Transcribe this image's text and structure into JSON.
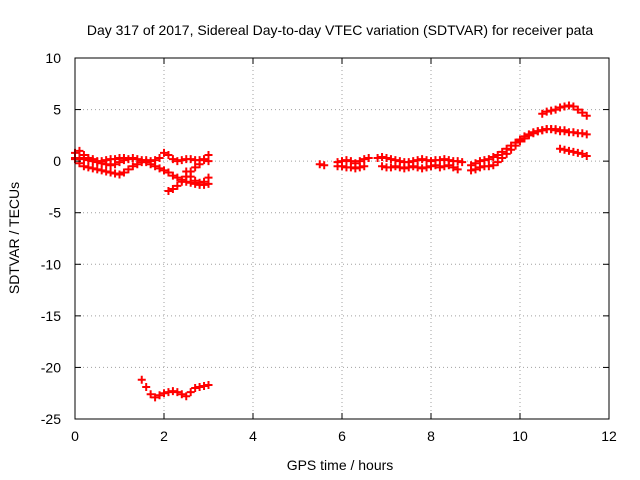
{
  "chart_data": {
    "type": "scatter",
    "title": "Day 317 of 2017, Sidereal Day-to-day VTEC variation (SDTVAR) for receiver pata",
    "xlabel": "GPS time / hours",
    "ylabel": "SDTVAR / TECUs",
    "xlim": [
      0,
      12
    ],
    "ylim": [
      -25,
      10
    ],
    "x_ticks": [
      0,
      2,
      4,
      6,
      8,
      10,
      12
    ],
    "y_ticks": [
      -25,
      -20,
      -15,
      -10,
      -5,
      0,
      5,
      10
    ],
    "x_tick_labels": [
      "0",
      "2",
      "4",
      "6",
      "8",
      "10",
      "12"
    ],
    "y_tick_labels": [
      "-25",
      "-20",
      "-15",
      "-10",
      "-5",
      "0",
      "5",
      "10"
    ],
    "grid": true,
    "marker": "plus",
    "color": "#ff0000",
    "series": [
      {
        "x": [
          0.0,
          0.1,
          0.2,
          0.3,
          0.4,
          0.5,
          0.6,
          0.7,
          0.8,
          0.9,
          1.0,
          1.1,
          1.2,
          1.3,
          1.4,
          1.5,
          1.6,
          1.7,
          1.8,
          1.9,
          2.0,
          2.1,
          2.2,
          2.3,
          2.4,
          2.5,
          2.6,
          2.7,
          2.8,
          2.9,
          3.0
        ],
        "y": [
          0.8,
          1.0,
          0.6,
          0.3,
          0.2,
          0.0,
          -0.2,
          -0.3,
          -0.4,
          -0.3,
          -0.1,
          0.1,
          0.2,
          0.3,
          0.2,
          0.1,
          0.1,
          0.0,
          0.1,
          0.3,
          0.8,
          0.6,
          0.2,
          0.0,
          0.1,
          0.2,
          0.2,
          0.1,
          0.1,
          0.1,
          0.0
        ]
      },
      {
        "x": [
          0.0,
          0.1,
          0.2,
          0.3,
          0.4,
          0.5,
          0.6,
          0.7,
          0.8,
          0.9,
          1.0,
          1.1,
          1.2,
          1.3,
          1.4,
          1.5
        ],
        "y": [
          0.3,
          -0.2,
          -0.5,
          -0.6,
          -0.7,
          -0.8,
          -0.9,
          -1.0,
          -1.1,
          -1.2,
          -1.3,
          -1.1,
          -0.8,
          -0.5,
          -0.3,
          -0.1
        ]
      },
      {
        "x": [
          0.0,
          0.1,
          0.2,
          0.3,
          0.4,
          0.5,
          0.6,
          0.7,
          0.8,
          0.9,
          1.0,
          1.1
        ],
        "y": [
          0.2,
          0.3,
          0.2,
          0.1,
          0.0,
          -0.1,
          0.0,
          0.1,
          0.2,
          0.2,
          0.3,
          0.3
        ]
      },
      {
        "x": [
          1.6,
          1.7,
          1.8,
          1.9,
          2.0,
          2.1,
          2.2,
          2.3,
          2.4,
          2.5,
          2.6,
          2.7,
          2.8,
          2.9,
          3.0
        ],
        "y": [
          -0.1,
          -0.3,
          -0.5,
          -0.7,
          -0.9,
          -1.1,
          -1.4,
          -1.6,
          -1.8,
          -2.0,
          -2.1,
          -2.2,
          -2.3,
          -2.3,
          -2.2
        ]
      },
      {
        "x": [
          2.1,
          2.2,
          2.3,
          2.4,
          2.5,
          2.6,
          2.7,
          2.8,
          2.9,
          3.0
        ],
        "y": [
          -2.9,
          -2.7,
          -2.4,
          -2.0,
          -1.5,
          -1.0,
          -0.6,
          -0.3,
          0.2,
          0.6
        ]
      },
      {
        "x": [
          2.5,
          2.6,
          2.7,
          2.8,
          2.9,
          3.0
        ],
        "y": [
          -1.0,
          -1.5,
          -1.9,
          -2.1,
          -2.0,
          -1.6
        ]
      },
      {
        "x": [
          1.5,
          1.6,
          1.7,
          1.8,
          1.9,
          2.0,
          2.1,
          2.2,
          2.3,
          2.4,
          2.5,
          2.6,
          2.7,
          2.8,
          2.9,
          3.0
        ],
        "y": [
          -21.2,
          -21.9,
          -22.6,
          -22.9,
          -22.7,
          -22.5,
          -22.4,
          -22.3,
          -22.4,
          -22.6,
          -22.8,
          -22.4,
          -22.0,
          -21.9,
          -21.8,
          -21.7
        ]
      },
      {
        "x": [
          5.5,
          5.6,
          5.9,
          6.0,
          6.1,
          6.2,
          6.3,
          6.4,
          6.5,
          6.6
        ],
        "y": [
          -0.3,
          -0.4,
          -0.1,
          0.0,
          0.1,
          0.0,
          -0.2,
          0.0,
          0.2,
          0.3
        ]
      },
      {
        "x": [
          5.9,
          6.0,
          6.1,
          6.2,
          6.3,
          6.4,
          6.5
        ],
        "y": [
          -0.5,
          -0.5,
          -0.6,
          -0.6,
          -0.7,
          -0.6,
          -0.5
        ]
      },
      {
        "x": [
          6.8,
          6.9,
          7.0,
          7.1,
          7.2,
          7.3,
          7.4,
          7.5,
          7.6,
          7.7,
          7.8,
          7.9,
          8.0,
          8.1,
          8.2,
          8.3,
          8.4,
          8.5,
          8.6,
          8.7
        ],
        "y": [
          0.3,
          0.4,
          0.3,
          0.2,
          0.1,
          0.0,
          -0.1,
          -0.1,
          0.0,
          0.1,
          0.2,
          0.1,
          0.0,
          0.1,
          0.1,
          0.2,
          0.1,
          0.0,
          0.0,
          -0.1
        ]
      },
      {
        "x": [
          6.9,
          7.0,
          7.1,
          7.2,
          7.3,
          7.4,
          7.5,
          7.6,
          7.7,
          7.8,
          7.9,
          8.0,
          8.1,
          8.2,
          8.3,
          8.4,
          8.5,
          8.6
        ],
        "y": [
          -0.5,
          -0.6,
          -0.6,
          -0.5,
          -0.6,
          -0.7,
          -0.6,
          -0.5,
          -0.6,
          -0.7,
          -0.6,
          -0.5,
          -0.4,
          -0.6,
          -0.5,
          -0.4,
          -0.6,
          -0.8
        ]
      },
      {
        "x": [
          8.9,
          9.0,
          9.1,
          9.2,
          9.3,
          9.4,
          9.5,
          9.6,
          9.7,
          9.8,
          9.9,
          10.0,
          10.1,
          10.2,
          10.3,
          10.4,
          10.5,
          10.6,
          10.7,
          10.8,
          10.9,
          11.0,
          11.1,
          11.2,
          11.3,
          11.4,
          11.5
        ],
        "y": [
          -0.4,
          -0.2,
          0.0,
          0.1,
          0.2,
          0.4,
          0.6,
          0.9,
          1.2,
          1.5,
          1.8,
          2.1,
          2.4,
          2.6,
          2.8,
          2.9,
          3.0,
          3.1,
          3.1,
          3.0,
          2.9,
          2.9,
          2.8,
          2.8,
          2.7,
          2.7,
          2.6
        ]
      },
      {
        "x": [
          8.9,
          9.0,
          9.1,
          9.2,
          9.3,
          9.4,
          9.5,
          9.6,
          9.7,
          9.8,
          9.9,
          10.0,
          10.1,
          10.2,
          10.3,
          10.4,
          10.5,
          10.6,
          10.7,
          10.8,
          10.9,
          11.0
        ],
        "y": [
          -0.9,
          -0.8,
          -0.6,
          -0.5,
          -0.5,
          -0.4,
          -0.1,
          0.3,
          0.7,
          1.1,
          1.5,
          1.9,
          2.2,
          2.5,
          2.7,
          2.9,
          3.0,
          3.1,
          3.1,
          3.1,
          3.0,
          3.0
        ]
      },
      {
        "x": [
          10.5,
          10.6,
          10.7,
          10.8,
          10.9,
          11.0,
          11.1,
          11.2,
          11.3,
          11.4,
          11.5
        ],
        "y": [
          4.6,
          4.8,
          4.9,
          5.0,
          5.2,
          5.3,
          5.4,
          5.3,
          5.0,
          4.7,
          4.4
        ]
      },
      {
        "x": [
          10.9,
          11.0,
          11.1,
          11.2,
          11.3,
          11.4,
          11.5
        ],
        "y": [
          1.2,
          1.1,
          1.0,
          0.9,
          0.8,
          0.7,
          0.5
        ]
      }
    ]
  }
}
